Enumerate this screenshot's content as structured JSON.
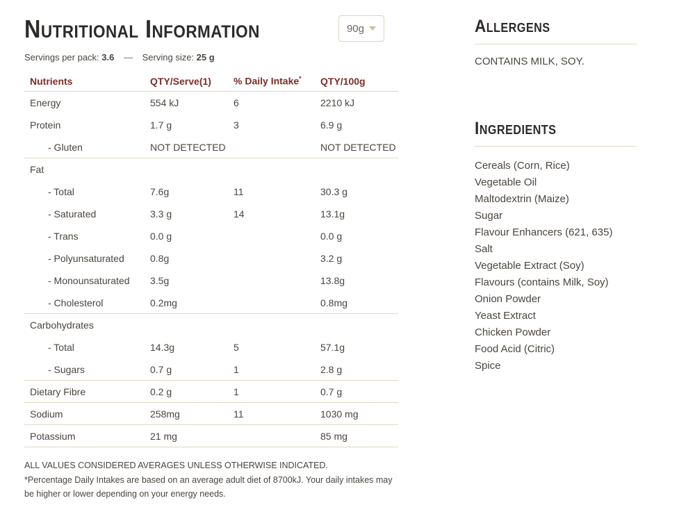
{
  "colors": {
    "table_header": "#7b2d26",
    "rule": "#e0d8c2",
    "heading": "#2d2a28",
    "body_text": "#4a453f",
    "dropdown_border": "#ddd4bd"
  },
  "nutrition": {
    "title": "Nutritional Information",
    "weight_selector": {
      "value": "90g",
      "caret_icon": "chevron-down-icon"
    },
    "servings": {
      "per_pack_label": "Servings per pack:",
      "per_pack_value": "3.6",
      "separator": "—",
      "size_label": "Serving size:",
      "size_value": "25 g"
    },
    "table": {
      "columns": [
        {
          "label": "Nutrients"
        },
        {
          "label": "QTY/Serve(1)"
        },
        {
          "label": "% Daily Intake",
          "sup": "*"
        },
        {
          "label": "QTY/100g"
        }
      ],
      "rows": [
        {
          "label": "Energy",
          "indent": false,
          "qty_serve": "554 kJ",
          "daily_intake": "6",
          "qty_100g": "2210 kJ",
          "rule_after": false
        },
        {
          "label": "Protein",
          "indent": false,
          "qty_serve": "1.7 g",
          "daily_intake": "3",
          "qty_100g": "6.9 g",
          "rule_after": false
        },
        {
          "label": "- Gluten",
          "indent": true,
          "qty_serve": "NOT DETECTED",
          "daily_intake": "",
          "qty_100g": "NOT DETECTED",
          "rule_after": true
        },
        {
          "label": "Fat",
          "indent": false,
          "qty_serve": "",
          "daily_intake": "",
          "qty_100g": "",
          "rule_after": false
        },
        {
          "label": "- Total",
          "indent": true,
          "qty_serve": "7.6g",
          "daily_intake": "11",
          "qty_100g": "30.3 g",
          "rule_after": false
        },
        {
          "label": "- Saturated",
          "indent": true,
          "qty_serve": "3.3 g",
          "daily_intake": "14",
          "qty_100g": "13.1g",
          "rule_after": false
        },
        {
          "label": "- Trans",
          "indent": true,
          "qty_serve": "0.0 g",
          "daily_intake": "",
          "qty_100g": "0.0 g",
          "rule_after": false
        },
        {
          "label": "- Polyunsaturated",
          "indent": true,
          "qty_serve": "0.8g",
          "daily_intake": "",
          "qty_100g": "3.2 g",
          "rule_after": false
        },
        {
          "label": "- Monounsaturated",
          "indent": true,
          "qty_serve": "3.5g",
          "daily_intake": "",
          "qty_100g": "13.8g",
          "rule_after": false
        },
        {
          "label": "- Cholesterol",
          "indent": true,
          "qty_serve": "0.2mg",
          "daily_intake": "",
          "qty_100g": "0.8mg",
          "rule_after": true
        },
        {
          "label": "Carbohydrates",
          "indent": false,
          "qty_serve": "",
          "daily_intake": "",
          "qty_100g": "",
          "rule_after": false
        },
        {
          "label": "- Total",
          "indent": true,
          "qty_serve": "14.3g",
          "daily_intake": "5",
          "qty_100g": "57.1g",
          "rule_after": false
        },
        {
          "label": "- Sugars",
          "indent": true,
          "qty_serve": "0.7 g",
          "daily_intake": "1",
          "qty_100g": "2.8 g",
          "rule_after": true
        },
        {
          "label": "Dietary Fibre",
          "indent": false,
          "qty_serve": "0.2 g",
          "daily_intake": "1",
          "qty_100g": "0.7 g",
          "rule_after": true
        },
        {
          "label": "Sodium",
          "indent": false,
          "qty_serve": "258mg",
          "daily_intake": "11",
          "qty_100g": "1030 mg",
          "rule_after": true
        },
        {
          "label": "Potassium",
          "indent": false,
          "qty_serve": "21 mg",
          "daily_intake": "",
          "qty_100g": "85 mg",
          "rule_after": true
        }
      ]
    },
    "footnotes": [
      "ALL VALUES CONSIDERED AVERAGES UNLESS OTHERWISE INDICATED.",
      "*Percentage Daily Intakes are based on an average adult diet of 8700kJ. Your daily intakes may be higher or lower depending on your energy needs."
    ]
  },
  "allergens": {
    "title": "Allergens",
    "text": "CONTAINS MILK, SOY."
  },
  "ingredients": {
    "title": "Ingredients",
    "items": [
      "Cereals (Corn, Rice)",
      "Vegetable Oil",
      "Maltodextrin (Maize)",
      "Sugar",
      "Flavour Enhancers (621, 635)",
      "Salt",
      "Vegetable Extract (Soy)",
      "Flavours (contains Milk, Soy)",
      "Onion Powder",
      "Yeast Extract",
      "Chicken Powder",
      "Food Acid (Citric)",
      "Spice"
    ]
  }
}
